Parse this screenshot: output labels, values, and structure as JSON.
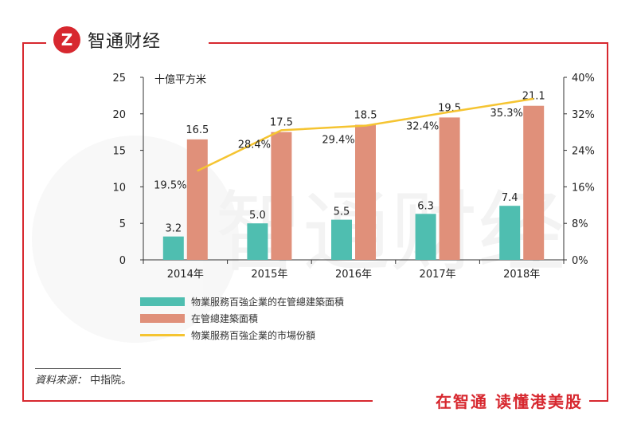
{
  "brand": {
    "name": "智通财经",
    "logo_glyph": "Z",
    "accent": "#d7282f"
  },
  "footer": {
    "slogan": "在智通  读懂港美股"
  },
  "source": {
    "label": "資料來源：",
    "value": "中指院。"
  },
  "chart_data": {
    "type": "bar",
    "title": "",
    "y_unit_label": "十億平方米",
    "categories": [
      "2014年",
      "2015年",
      "2016年",
      "2017年",
      "2018年"
    ],
    "ylim": [
      0,
      25
    ],
    "yticks": [
      "0",
      "5",
      "10",
      "15",
      "20",
      "25"
    ],
    "y2lim": [
      0,
      40
    ],
    "y2ticks": [
      "0%",
      "8%",
      "16%",
      "24%",
      "32%",
      "40%"
    ],
    "series": [
      {
        "name": "物業服務百強企業的在管總建築面積",
        "kind": "bar",
        "axis": "left",
        "color": "#4fbeb0",
        "values": [
          3.2,
          5.0,
          5.5,
          6.3,
          7.4
        ],
        "labels": [
          "3.2",
          "5.0",
          "5.5",
          "6.3",
          "7.4"
        ]
      },
      {
        "name": "在管總建築面積",
        "kind": "bar",
        "axis": "left",
        "color": "#e0907a",
        "values": [
          16.5,
          17.5,
          18.5,
          19.5,
          21.1
        ],
        "labels": [
          "16.5",
          "17.5",
          "18.5",
          "19.5",
          "21.1"
        ]
      },
      {
        "name": "物業服務百強企業的市場份額",
        "kind": "line",
        "axis": "right",
        "color": "#f5c431",
        "values": [
          19.5,
          28.4,
          29.4,
          32.4,
          35.3
        ],
        "labels": [
          "19.5%",
          "28.4%",
          "29.4%",
          "32.4%",
          "35.3%"
        ]
      }
    ],
    "watermark": "智通财经"
  }
}
